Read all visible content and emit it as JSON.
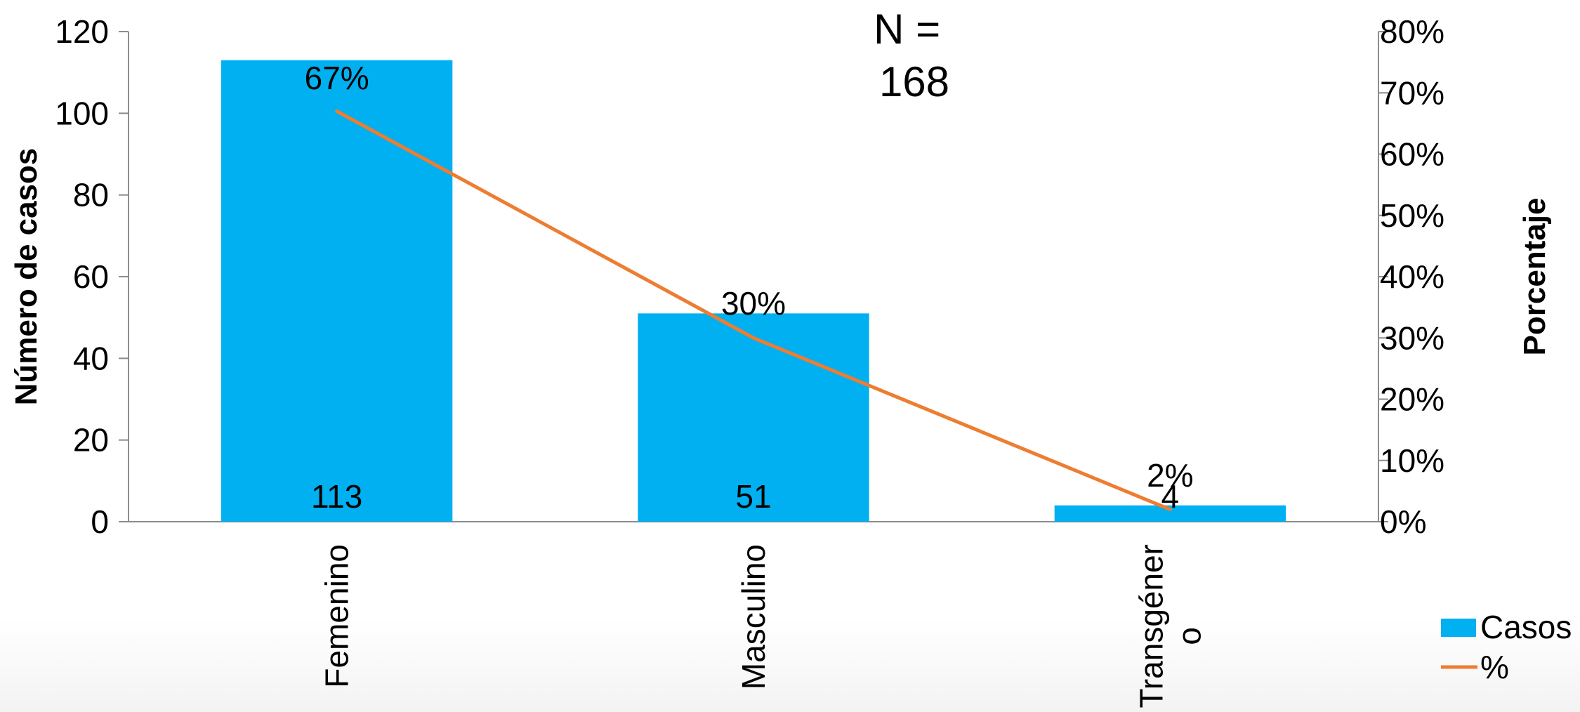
{
  "chart_data": {
    "type": "bar",
    "categories": [
      "Femenino",
      "Masculino",
      "Transgénero"
    ],
    "category_display": [
      [
        "Femenino"
      ],
      [
        "Masculino"
      ],
      [
        "Transgéner",
        "o"
      ]
    ],
    "series": [
      {
        "name": "Casos",
        "type": "bar",
        "axis": "left",
        "values": [
          113,
          51,
          4
        ],
        "labels": [
          "113",
          "51",
          "4"
        ],
        "color": "#00B0F0"
      },
      {
        "name": "%",
        "type": "line",
        "axis": "right",
        "values": [
          67,
          30,
          2
        ],
        "labels": [
          "67%",
          "30%",
          "2%"
        ],
        "color": "#ED7D31"
      }
    ],
    "annotation": [
      "N =",
      "168"
    ],
    "ylabel": "Número de casos",
    "y2label": "Porcentaje",
    "ylim": [
      0,
      120
    ],
    "yticks": [
      0,
      20,
      40,
      60,
      80,
      100,
      120
    ],
    "y2lim": [
      0,
      80
    ],
    "y2ticks": [
      "0%",
      "10%",
      "20%",
      "30%",
      "40%",
      "50%",
      "60%",
      "70%",
      "80%"
    ],
    "grid": false,
    "legend_position": "bottom-right"
  }
}
